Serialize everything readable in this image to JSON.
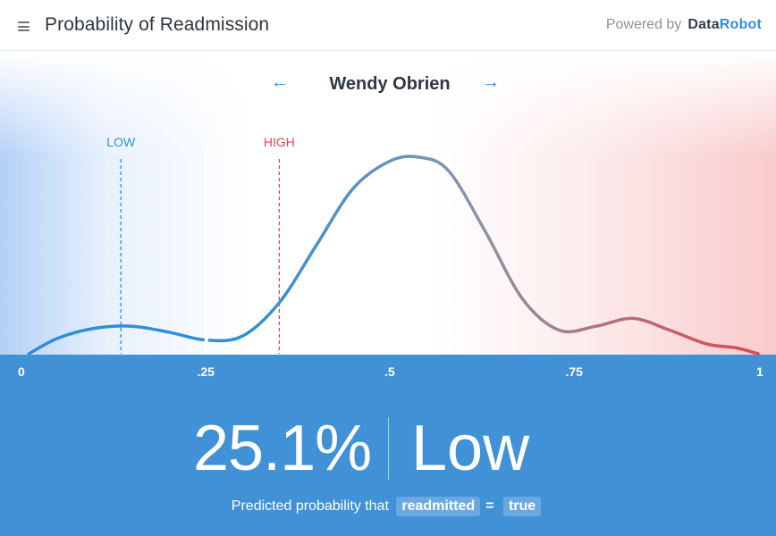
{
  "header": {
    "title": "Probability of Readmission",
    "powered_by_label": "Powered by",
    "brand_part1": "Data",
    "brand_part2": "Robot",
    "menu_icon": "hamburger-menu-icon"
  },
  "navigation": {
    "prev_icon": "←",
    "next_icon": "→",
    "patient_name": "Wendy Obrien"
  },
  "thresholds": {
    "low_label": "LOW",
    "low_value": 0.135,
    "high_label": "HIGH",
    "high_value": 0.35,
    "low_color": "#2d8fdb",
    "high_color": "#e0474c"
  },
  "chart_data": {
    "type": "area",
    "title": "",
    "xlabel": "",
    "ylabel": "",
    "x_tick_labels": [
      "0",
      ".25",
      ".5",
      ".75",
      "1"
    ],
    "x_ticks": [
      0,
      0.25,
      0.5,
      0.75,
      1
    ],
    "xlim": [
      0,
      1
    ],
    "ylim": [
      0,
      1
    ],
    "marker_value": 0.251,
    "density": {
      "x": [
        0.01,
        0.05,
        0.1,
        0.15,
        0.2,
        0.25,
        0.3,
        0.35,
        0.4,
        0.45,
        0.5,
        0.54,
        0.58,
        0.63,
        0.68,
        0.73,
        0.78,
        0.83,
        0.88,
        0.93,
        0.97,
        1.0
      ],
      "y": [
        0.0,
        0.08,
        0.13,
        0.14,
        0.11,
        0.07,
        0.09,
        0.26,
        0.55,
        0.84,
        0.98,
        1.0,
        0.93,
        0.62,
        0.28,
        0.12,
        0.14,
        0.18,
        0.12,
        0.05,
        0.03,
        0.0
      ]
    },
    "gradient_colors": [
      "#2d8fdb",
      "#e0474c"
    ]
  },
  "refresh_icon": "refresh-icon",
  "result": {
    "percentage": "25.1%",
    "label": "Low",
    "caption_prefix": "Predicted probability that",
    "feature": "readmitted",
    "equals": "=",
    "target_value": "true"
  },
  "colors": {
    "axis_bar": "#4191d6",
    "accent": "#2d8fdb"
  }
}
